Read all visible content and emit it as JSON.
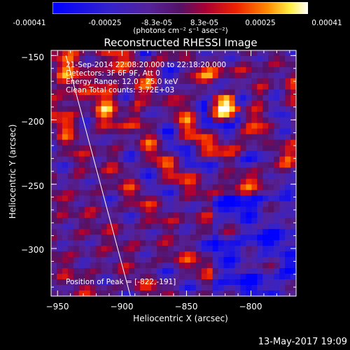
{
  "colorbar": {
    "tick_labels": [
      "-0.00041",
      "-0.00025",
      "-8.3e-05",
      "8.3e-05",
      "0.00025",
      "0.00041"
    ],
    "tick_values": [
      -0.00041,
      -0.00025,
      -8.3e-05,
      8.3e-05,
      0.00025,
      0.00041
    ],
    "range": [
      -0.00041,
      0.00041
    ],
    "label": "(photons cm⁻² s⁻¹ asec⁻²)"
  },
  "chart_data": {
    "type": "heatmap",
    "title": "Reconstructed RHESSI Image",
    "xlabel": "Heliocentric X (arcsec)",
    "ylabel": "Heliocentric Y (arcsec)",
    "xlim": [
      -955,
      -765
    ],
    "ylim": [
      -337,
      -146
    ],
    "x_ticks": [
      -950,
      -900,
      -850,
      -800
    ],
    "y_ticks": [
      -150,
      -200,
      -250,
      -300
    ],
    "x_tick_labels": [
      "−950",
      "−900",
      "−850",
      "−800"
    ],
    "y_tick_labels": [
      "−150",
      "−200",
      "−250",
      "−300"
    ],
    "limb_line": {
      "x": [
        -950,
        -900
      ],
      "y": [
        -150,
        -337
      ]
    },
    "peak_position": [
      -822,
      -191
    ],
    "info_lines": [
      "21-Sep-2014 22:08:20.000 to 22:18:20.000",
      "Detectors: 3F 6F 9F, Att 0",
      "Energy Range: 12.0 - 25.0 keV",
      "Clean    Total counts: 3.72E+03"
    ],
    "peak_label": "Position of Peak = [-822,-191]"
  },
  "footer": {
    "date": "13-May-2017 19:09"
  }
}
